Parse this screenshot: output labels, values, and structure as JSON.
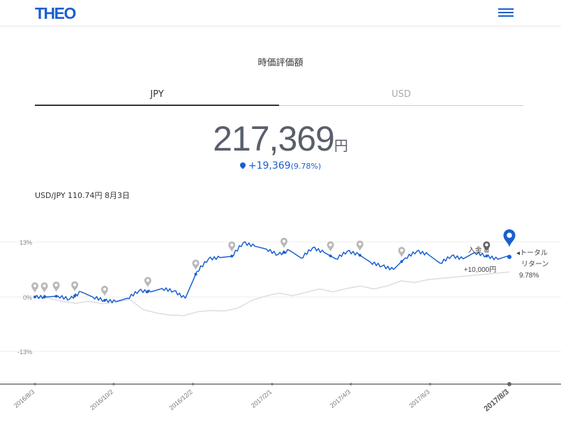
{
  "header": {
    "logo": "THEO",
    "menu_icon": "hamburger-menu-icon"
  },
  "page": {
    "title": "時価評価額"
  },
  "tabs": [
    {
      "label": "JPY",
      "active": true
    },
    {
      "label": "USD",
      "active": false
    }
  ],
  "valuation": {
    "amount": "217,369",
    "unit": "円",
    "change": "+19,369",
    "change_pct": "(9.78%)"
  },
  "exchange_rate": "USD/JPY 110.74円 8月3日",
  "colors": {
    "accent": "#1a5fd0",
    "benchmark": "#dddddd",
    "marker": "#b8b8b8"
  },
  "chart_data": {
    "type": "line",
    "y_tick_labels": [
      "13%",
      "0%",
      "-13%"
    ],
    "ylim": [
      -13,
      13
    ],
    "x_tick_labels": [
      "2016/8/3",
      "2016/10/2",
      "2016/12/2",
      "2017/2/1",
      "2017/4/3",
      "2017/6/3",
      "2017/8/3"
    ],
    "series": [
      {
        "values": [
          0,
          0,
          0.2,
          -0.5,
          1.2,
          0,
          -0.8,
          -1.1,
          -0.3,
          1.5,
          1.2,
          2.0,
          1.4,
          -0.3,
          6.0,
          9.0,
          9.3,
          9.6,
          12.8,
          12.0,
          11.3,
          10.0,
          11.0,
          9.2,
          11.6,
          10.5,
          9.0,
          10.8,
          10.0,
          8.2,
          7.3,
          6.5,
          9.2,
          10.8,
          10.0,
          8.0,
          9.7,
          9.0,
          10.5,
          9.7,
          8.9,
          9.8
        ]
      },
      {
        "values": [
          0,
          -0.3,
          -1.0,
          -1.5,
          -1.0,
          -1.6,
          -1.2,
          -0.6,
          -3.0,
          -3.8,
          -4.3,
          -4.4,
          -3.5,
          -3.2,
          -3.3,
          -2.6,
          -0.8,
          0.2,
          0.9,
          0.3,
          1.1,
          1.9,
          1.2,
          2.0,
          2.6,
          1.9,
          2.6,
          3.8,
          3.4,
          4.1,
          4.4,
          4.7,
          5.0,
          5.3,
          5.6,
          5.9
        ]
      }
    ],
    "annotations": [
      {
        "label": "入金 ",
        "icon": "deposit-icon",
        "text": "+10,000円"
      },
      {
        "label": "トータル",
        "label2": "リターン",
        "value": "9.78%"
      }
    ],
    "markers_x": [
      0,
      0.02,
      0.045,
      0.084,
      0.147,
      0.238,
      0.339,
      0.415,
      0.525,
      0.623,
      0.685,
      0.773,
      0.952
    ],
    "special_marker_x": 0.952,
    "current_marker_x": 1.0
  }
}
